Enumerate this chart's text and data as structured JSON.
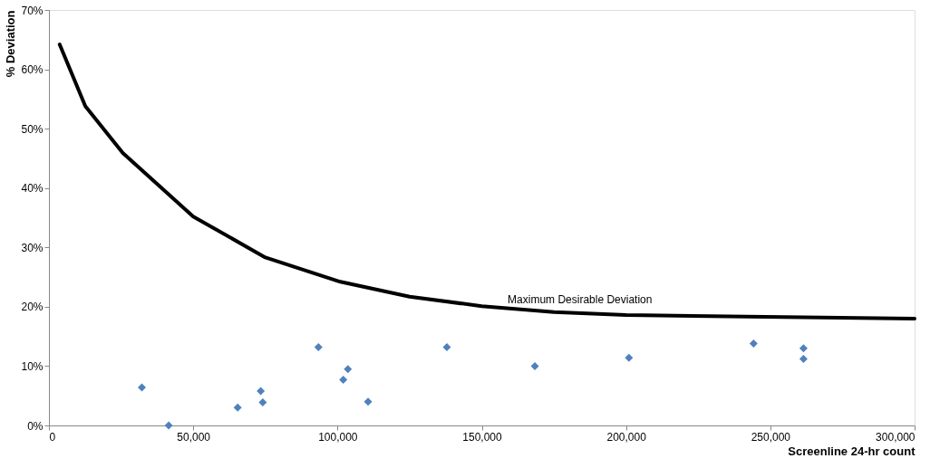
{
  "chart_data": {
    "type": "scatter",
    "xlabel": "Screenline 24-hr count",
    "ylabel": "% Deviation",
    "xlim": [
      0,
      300000
    ],
    "ylim": [
      0,
      70
    ],
    "xticks": [
      {
        "value": 0,
        "label": "0"
      },
      {
        "value": 50000,
        "label": "50,000"
      },
      {
        "value": 100000,
        "label": "100,000"
      },
      {
        "value": 150000,
        "label": "150,000"
      },
      {
        "value": 200000,
        "label": "200,000"
      },
      {
        "value": 250000,
        "label": "250,000"
      },
      {
        "value": 300000,
        "label": "300,000"
      }
    ],
    "yticks": [
      {
        "value": 0,
        "label": "0%"
      },
      {
        "value": 10,
        "label": "10%"
      },
      {
        "value": 20,
        "label": "20%"
      },
      {
        "value": 30,
        "label": "30%"
      },
      {
        "value": 40,
        "label": "40%"
      },
      {
        "value": 50,
        "label": "50%"
      },
      {
        "value": 60,
        "label": "60%"
      },
      {
        "value": 70,
        "label": "70%"
      }
    ],
    "grid": false,
    "series": [
      {
        "color": "#4f81bd",
        "marker": "diamond",
        "x": [
          32200,
          41500,
          65400,
          73400,
          74100,
          93400,
          102000,
          103600,
          110600,
          137900,
          168400,
          201000,
          244200,
          261500,
          261500
        ],
        "values": [
          6.4,
          0.0,
          3.0,
          5.8,
          3.9,
          13.2,
          7.7,
          9.5,
          4.0,
          13.2,
          10.0,
          11.4,
          13.8,
          13.0,
          11.2
        ]
      },
      {
        "type": "line",
        "color": "#000000",
        "marker": "none",
        "line_style": "solid",
        "x": [
          3700,
          12600,
          25600,
          50000,
          75000,
          101000,
          125000,
          150000,
          175000,
          200000,
          300000
        ],
        "values": [
          64.2,
          53.8,
          45.9,
          35.2,
          28.3,
          24.2,
          21.7,
          20.1,
          19.1,
          18.6,
          18.0
        ]
      }
    ],
    "annotations": [
      {
        "text": "Maximum Desirable Deviation",
        "x": 184000,
        "y": 18.9
      }
    ]
  }
}
